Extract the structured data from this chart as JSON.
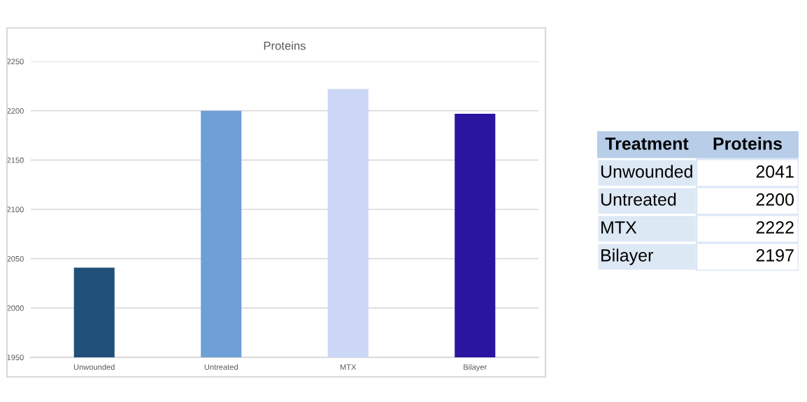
{
  "chart_data": [
    {
      "type": "bar",
      "title": "Proteins",
      "categories": [
        "Unwounded",
        "Untreated",
        "MTX",
        "Bilayer"
      ],
      "values": [
        2041,
        2200,
        2222,
        2197
      ],
      "colors": [
        "#215079",
        "#6e9fd6",
        "#ccd6f6",
        "#2a15a0"
      ],
      "ylim": [
        1950,
        2250
      ],
      "yticks": [
        1950,
        2000,
        2050,
        2100,
        2150,
        2200,
        2250
      ],
      "grid": "y"
    },
    {
      "type": "other",
      "annotations": [
        "Treatment",
        "Proteins",
        "Unwounded",
        "2041",
        "Untreated",
        "2200",
        "MTX",
        "2222",
        "Bilayer",
        "2197"
      ]
    }
  ]
}
